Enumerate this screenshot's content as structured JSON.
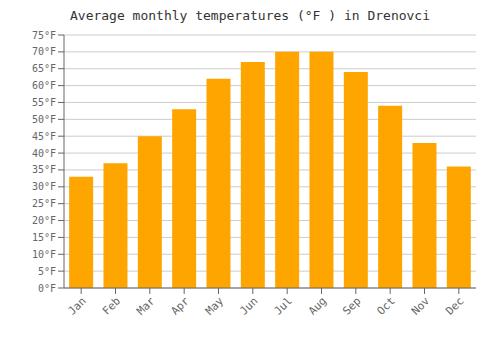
{
  "chart_data": {
    "type": "bar",
    "title": "Average monthly temperatures (°F ) in Drenovci",
    "categories": [
      "Jan",
      "Feb",
      "Mar",
      "Apr",
      "May",
      "Jun",
      "Jul",
      "Aug",
      "Sep",
      "Oct",
      "Nov",
      "Dec"
    ],
    "values": [
      33,
      37,
      45,
      53,
      62,
      67,
      70,
      70,
      64,
      54,
      43,
      36
    ],
    "color": "#FFA500",
    "ylim": [
      0,
      75
    ],
    "yticks": [
      {
        "value": 0,
        "label": "0°F"
      },
      {
        "value": 5,
        "label": "5°F"
      },
      {
        "value": 10,
        "label": "10°F"
      },
      {
        "value": 15,
        "label": "15°F"
      },
      {
        "value": 20,
        "label": "20°F"
      },
      {
        "value": 25,
        "label": "25°F"
      },
      {
        "value": 30,
        "label": "30°F"
      },
      {
        "value": 35,
        "label": "35°F"
      },
      {
        "value": 40,
        "label": "40°F"
      },
      {
        "value": 45,
        "label": "45°F"
      },
      {
        "value": 50,
        "label": "50°F"
      },
      {
        "value": 55,
        "label": "55°F"
      },
      {
        "value": 60,
        "label": "60°F"
      },
      {
        "value": 65,
        "label": "65°F"
      },
      {
        "value": 70,
        "label": "70°F"
      },
      {
        "value": 75,
        "label": "75°F"
      }
    ],
    "grid": true
  }
}
